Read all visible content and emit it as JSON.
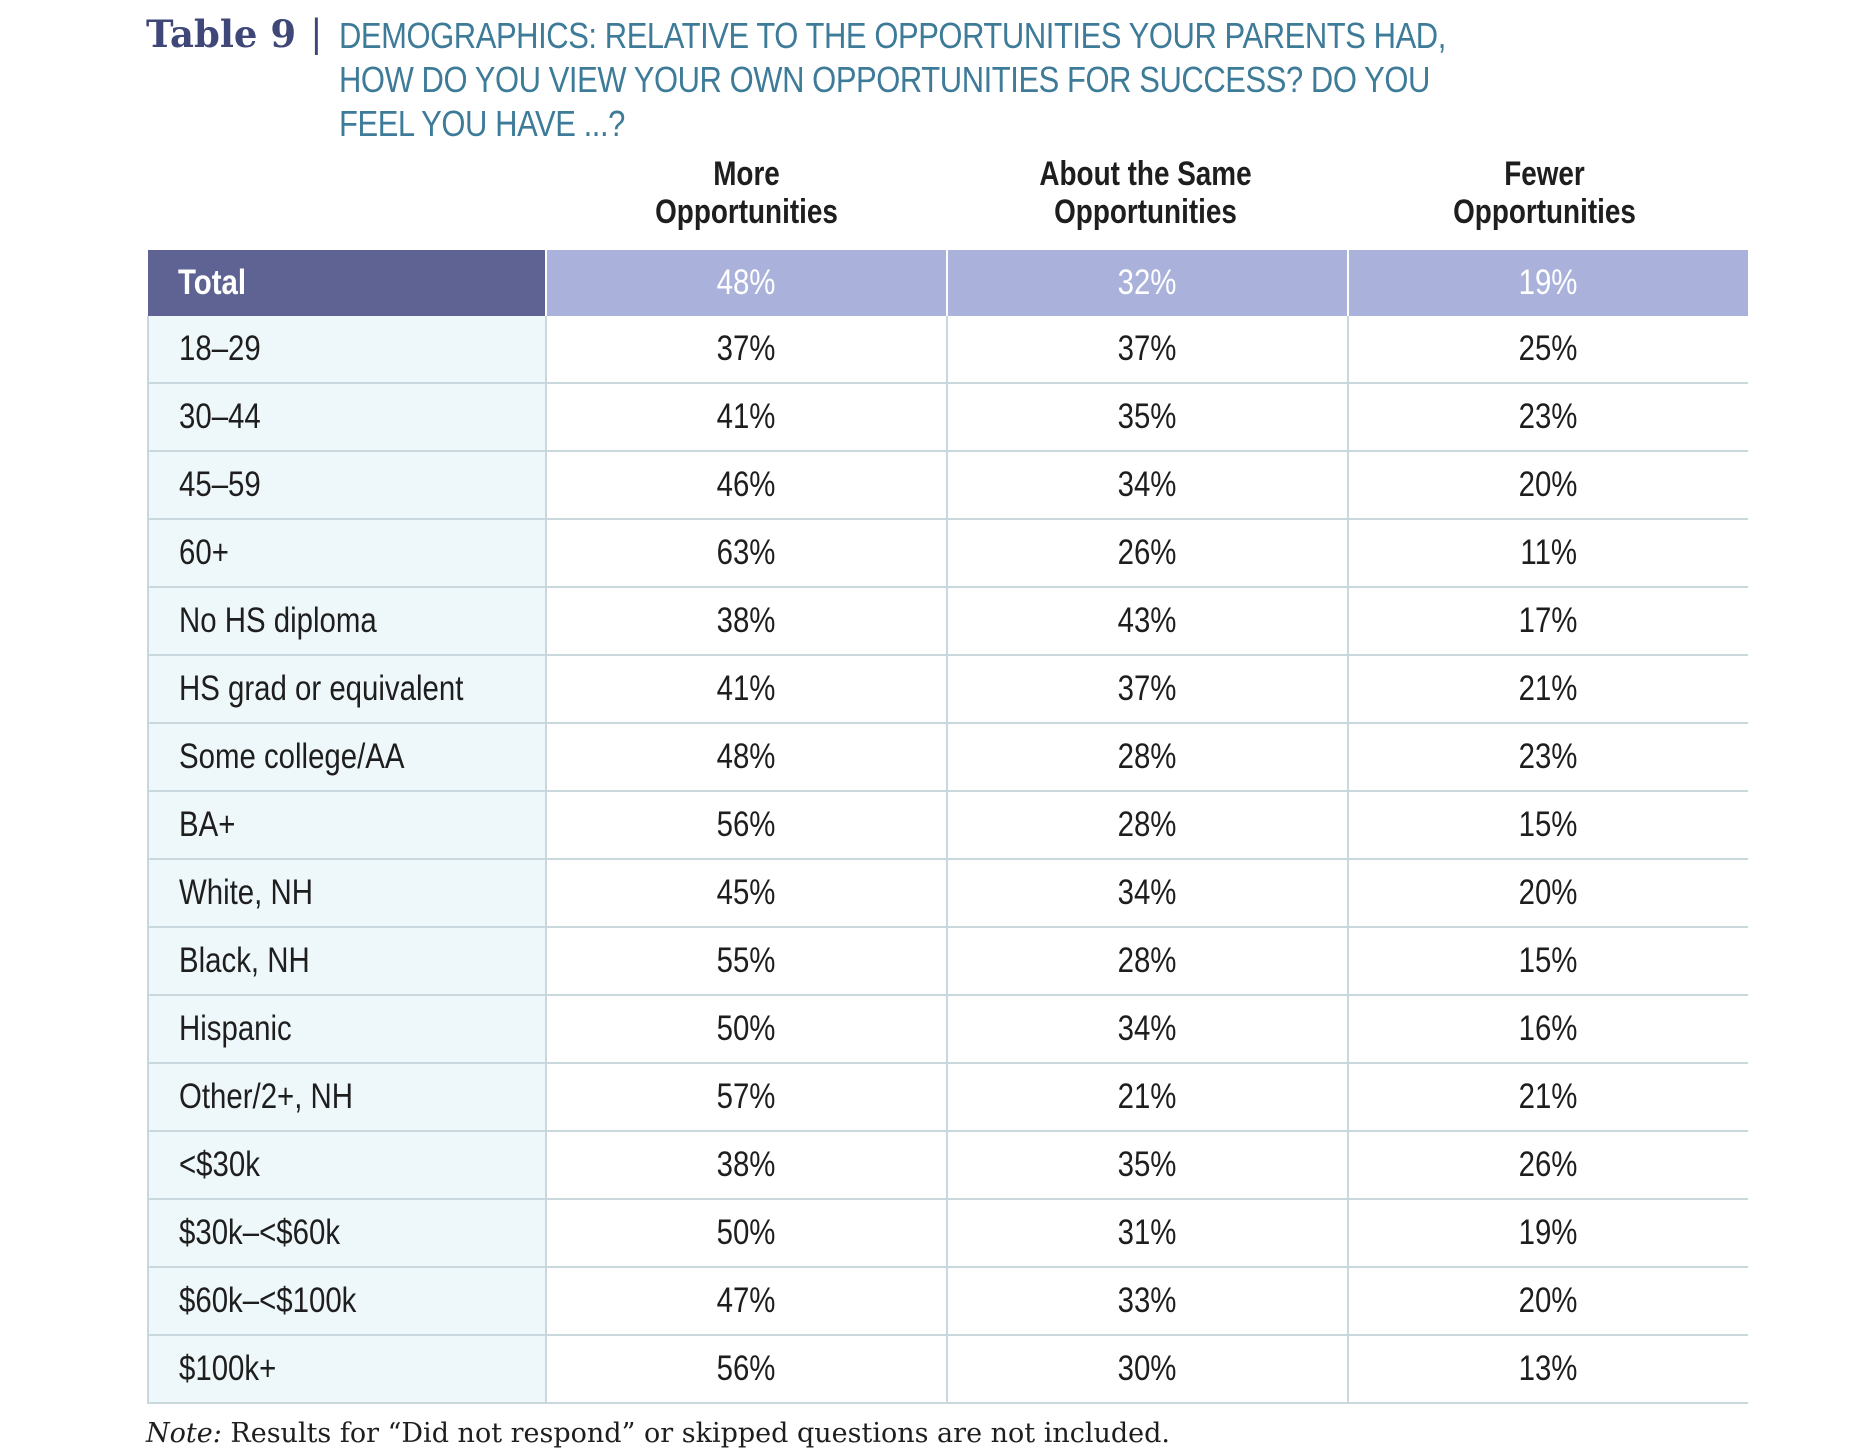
{
  "header": {
    "table_label": "Table 9",
    "separator": "|",
    "title": "DEMOGRAPHICS: RELATIVE TO THE OPPORTUNITIES YOUR PARENTS HAD, HOW DO YOU VIEW YOUR OWN OPPORTUNITIES FOR SUCCESS? DO YOU FEEL YOU HAVE ...?"
  },
  "columns": {
    "more_line1": "More",
    "more_line2": "Opportunities",
    "same_line1": "About the Same",
    "same_line2": "Opportunities",
    "fewer_line1": "Fewer",
    "fewer_line2": "Opportunities"
  },
  "total": {
    "label": "Total",
    "more": "48%",
    "same": "32%",
    "fewer": "19%"
  },
  "rows": [
    {
      "label": "18–29",
      "more": "37%",
      "same": "37%",
      "fewer": "25%"
    },
    {
      "label": "30–44",
      "more": "41%",
      "same": "35%",
      "fewer": "23%"
    },
    {
      "label": "45–59",
      "more": "46%",
      "same": "34%",
      "fewer": "20%"
    },
    {
      "label": "60+",
      "more": "63%",
      "same": "26%",
      "fewer": "11%"
    },
    {
      "label": "No HS diploma",
      "more": "38%",
      "same": "43%",
      "fewer": "17%"
    },
    {
      "label": "HS grad or equivalent",
      "more": "41%",
      "same": "37%",
      "fewer": "21%"
    },
    {
      "label": "Some college/AA",
      "more": "48%",
      "same": "28%",
      "fewer": "23%"
    },
    {
      "label": "BA+",
      "more": "56%",
      "same": "28%",
      "fewer": "15%"
    },
    {
      "label": "White, NH",
      "more": "45%",
      "same": "34%",
      "fewer": "20%"
    },
    {
      "label": "Black, NH",
      "more": "55%",
      "same": "28%",
      "fewer": "15%"
    },
    {
      "label": "Hispanic",
      "more": "50%",
      "same": "34%",
      "fewer": "16%"
    },
    {
      "label": "Other/2+, NH",
      "more": "57%",
      "same": "21%",
      "fewer": "21%"
    },
    {
      "label": "<$30k",
      "more": "38%",
      "same": "35%",
      "fewer": "26%"
    },
    {
      "label": "$30k–<$60k",
      "more": "50%",
      "same": "31%",
      "fewer": "19%"
    },
    {
      "label": "$60k–<$100k",
      "more": "47%",
      "same": "33%",
      "fewer": "20%"
    },
    {
      "label": "$100k+",
      "more": "56%",
      "same": "30%",
      "fewer": "13%"
    }
  ],
  "note": {
    "label": "Note:",
    "text": " Results for “Did not respond” or skipped questions are not included."
  },
  "colors": {
    "total_label_bg": "#5e6394",
    "total_value_bg": "#aab2db",
    "label_column_bg": "#eef7f9",
    "title_color": "#3d7b98",
    "table_label_color": "#3e4777"
  }
}
